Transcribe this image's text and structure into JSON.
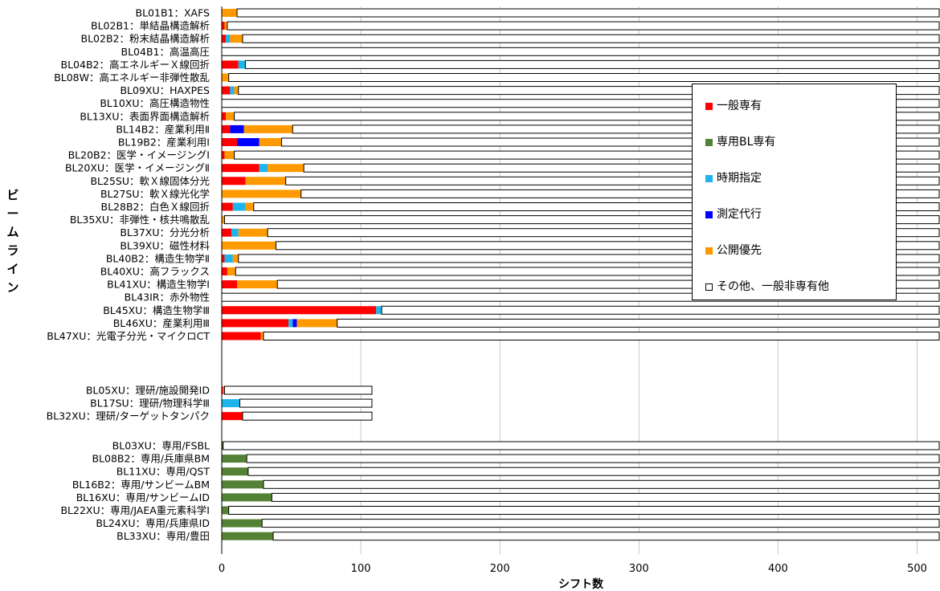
{
  "chart_data": {
    "type": "bar",
    "orientation": "horizontal",
    "stacked": true,
    "xlabel": "シフト数",
    "ylabel": "ビームライン",
    "xlim": [
      0,
      520
    ],
    "xticks": [
      0,
      100,
      200,
      300,
      400,
      500
    ],
    "grid": true,
    "legend_position": "right",
    "colors": {
      "一般専有": "#ff0000",
      "専用BL専有": "#538135",
      "時期指定": "#1eb4ec",
      "測定代行": "#0000ff",
      "公開優先": "#ff9900",
      "その他、一般非専有他": "#ffffff"
    },
    "series_names": [
      "一般専有",
      "専用BL専有",
      "時期指定",
      "測定代行",
      "公開優先",
      "その他、一般非専有他"
    ],
    "groups": [
      {
        "rows": [
          {
            "label": "BL01B1：XAFS",
            "values": [
              0,
              0,
              0,
              0,
              11,
              509
            ]
          },
          {
            "label": "BL02B1：単結晶構造解析",
            "values": [
              2,
              0,
              0,
              0,
              2,
              516
            ]
          },
          {
            "label": "BL02B2：粉末結晶構造解析",
            "values": [
              3,
              0,
              3,
              0,
              9,
              505
            ]
          },
          {
            "label": "BL04B1：高温高圧",
            "values": [
              0,
              0,
              0,
              0,
              0,
              520
            ]
          },
          {
            "label": "BL04B2：高エネルギーＸ線回折",
            "values": [
              12,
              0,
              5,
              0,
              0,
              503
            ]
          },
          {
            "label": "BL08W：高エネルギー非弾性散乱",
            "values": [
              0,
              0,
              0,
              0,
              5,
              515
            ]
          },
          {
            "label": "BL09XU：HAXPES",
            "values": [
              6,
              0,
              3,
              0,
              3,
              508
            ]
          },
          {
            "label": "BL10XU：高圧構造物性",
            "values": [
              0,
              0,
              0,
              0,
              0,
              520
            ]
          },
          {
            "label": "BL13XU：表面界面構造解析",
            "values": [
              3,
              0,
              0,
              0,
              6,
              511
            ]
          },
          {
            "label": "BL14B2：産業利用Ⅱ",
            "values": [
              6,
              0,
              0,
              10,
              35,
              469
            ]
          },
          {
            "label": "BL19B2：産業利用Ⅰ",
            "values": [
              11,
              0,
              0,
              16,
              16,
              477
            ]
          },
          {
            "label": "BL20B2：医学・イメージングⅠ",
            "values": [
              2,
              0,
              0,
              0,
              7,
              511
            ]
          },
          {
            "label": "BL20XU：医学・イメージングⅡ",
            "values": [
              27,
              0,
              6,
              0,
              26,
              461
            ]
          },
          {
            "label": "BL25SU：軟Ｘ線固体分光",
            "values": [
              17,
              0,
              0,
              0,
              29,
              474
            ]
          },
          {
            "label": "BL27SU：軟Ｘ線光化学",
            "values": [
              0,
              0,
              0,
              0,
              57,
              463
            ]
          },
          {
            "label": "BL28B2：白色Ｘ線回折",
            "values": [
              8,
              0,
              9,
              0,
              6,
              497
            ]
          },
          {
            "label": "BL35XU：非弾性・核共鳴散乱",
            "values": [
              0,
              0,
              0,
              0,
              2,
              518
            ]
          },
          {
            "label": "BL37XU：分光分析",
            "values": [
              7,
              0,
              5,
              0,
              21,
              487
            ]
          },
          {
            "label": "BL39XU：磁性材料",
            "values": [
              0,
              0,
              0,
              0,
              39,
              481
            ]
          },
          {
            "label": "BL40B2：構造生物学Ⅱ",
            "values": [
              2,
              0,
              6,
              0,
              4,
              508
            ]
          },
          {
            "label": "BL40XU：高フラックス",
            "values": [
              4,
              0,
              0,
              0,
              6,
              510
            ]
          },
          {
            "label": "BL41XU：構造生物学Ⅰ",
            "values": [
              11,
              0,
              0,
              0,
              29,
              480
            ]
          },
          {
            "label": "BL43IR：赤外物性",
            "values": [
              0,
              0,
              0,
              0,
              0,
              520
            ]
          },
          {
            "label": "BL45XU：構造生物学Ⅲ",
            "values": [
              111,
              0,
              4,
              0,
              0,
              405
            ]
          },
          {
            "label": "BL46XU：産業利用Ⅲ",
            "values": [
              48,
              0,
              3,
              3,
              29,
              437
            ]
          },
          {
            "label": "BL47XU：光電子分光・マイクロCT",
            "values": [
              28,
              0,
              0,
              0,
              2,
              490
            ]
          }
        ]
      },
      {
        "rows": [
          {
            "label": "BL05XU：理研/施設開発ID",
            "values": [
              1,
              0,
              0,
              0,
              1,
              106
            ]
          },
          {
            "label": "BL17SU：理研/物理科学Ⅲ",
            "values": [
              0,
              0,
              13,
              0,
              0,
              95
            ]
          },
          {
            "label": "BL32XU：理研/ターゲットタンパク",
            "values": [
              15,
              0,
              0,
              0,
              0,
              93
            ]
          }
        ]
      },
      {
        "rows": [
          {
            "label": "BL03XU：専用/FSBL",
            "values": [
              0,
              1,
              0,
              0,
              0,
              519
            ]
          },
          {
            "label": "BL08B2：専用/兵庫県BM",
            "values": [
              0,
              18,
              0,
              0,
              0,
              502
            ]
          },
          {
            "label": "BL11XU：専用/QST",
            "values": [
              0,
              19,
              0,
              0,
              0,
              501
            ]
          },
          {
            "label": "BL16B2：専用/サンビームBM",
            "values": [
              0,
              30,
              0,
              0,
              0,
              490
            ]
          },
          {
            "label": "BL16XU：専用/サンビームID",
            "values": [
              0,
              36,
              0,
              0,
              0,
              484
            ]
          },
          {
            "label": "BL22XU：専用/JAEA重元素科学Ⅰ",
            "values": [
              0,
              5,
              0,
              0,
              0,
              515
            ]
          },
          {
            "label": "BL24XU：専用/兵庫県ID",
            "values": [
              0,
              29,
              0,
              0,
              0,
              491
            ]
          },
          {
            "label": "BL33XU：専用/豊田",
            "values": [
              0,
              37,
              0,
              0,
              0,
              483
            ]
          }
        ]
      }
    ]
  },
  "legend": {
    "items": [
      {
        "label": "一般専有",
        "color": "#ff0000"
      },
      {
        "label": "専用BL専有",
        "color": "#538135"
      },
      {
        "label": "時期指定",
        "color": "#1eb4ec"
      },
      {
        "label": "測定代行",
        "color": "#0000ff"
      },
      {
        "label": "公開優先",
        "color": "#ff9900"
      },
      {
        "label": "その他、一般非専有他",
        "color": "#ffffff"
      }
    ]
  }
}
